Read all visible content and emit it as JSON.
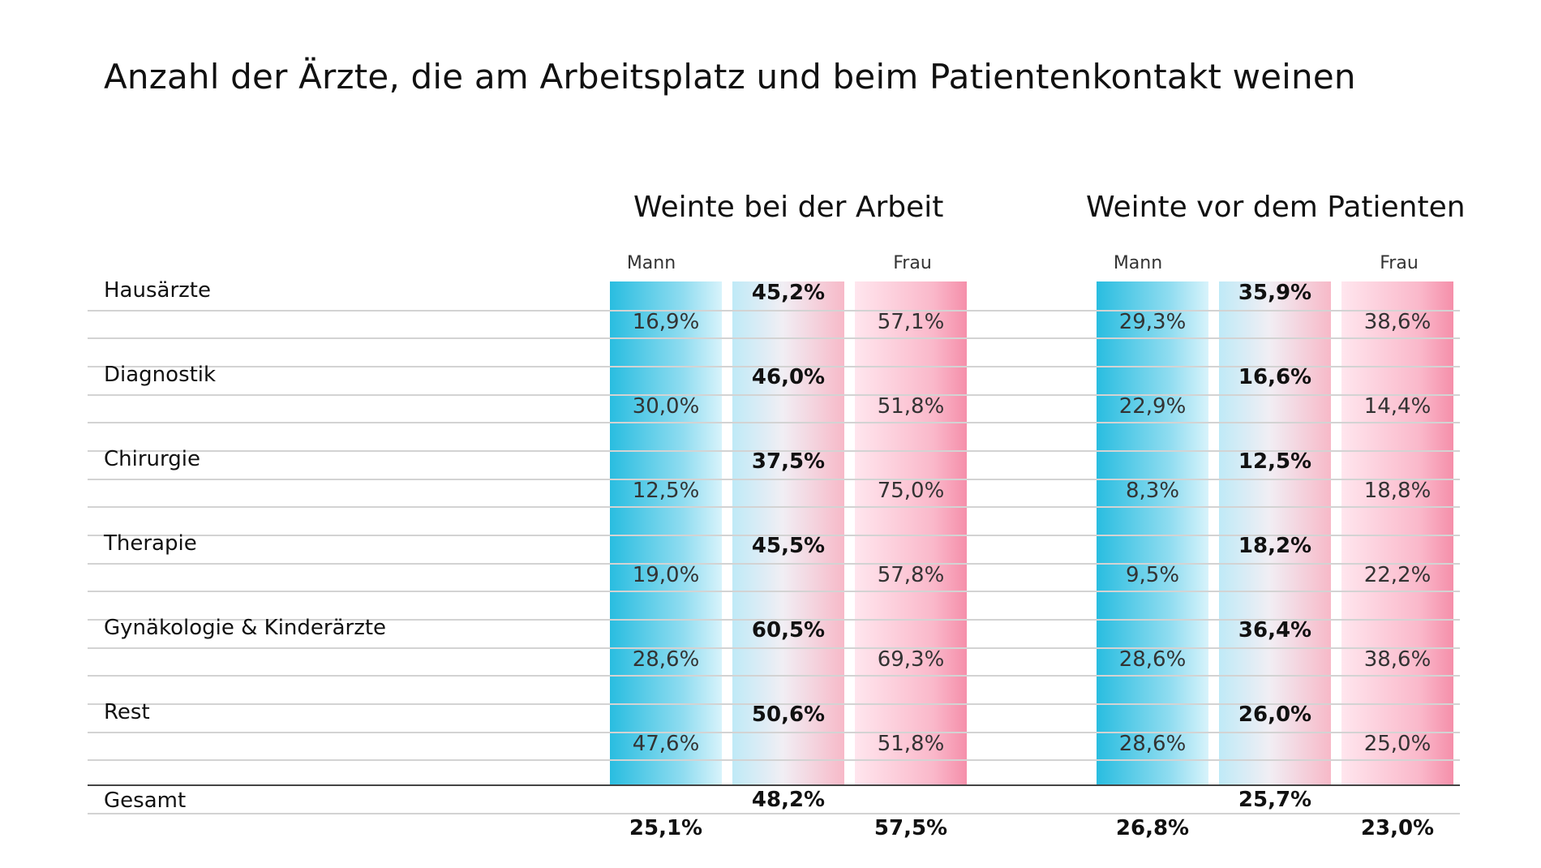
{
  "chart_data": {
    "type": "table",
    "title": "Anzahl der Ärzte, die am Arbeitsplatz und beim Patientenkontakt weinen",
    "groups": [
      {
        "title": "Weinte bei der Arbeit",
        "mann_label": "Mann",
        "frau_label": "Frau"
      },
      {
        "title": "Weinte vor dem Patienten",
        "mann_label": "Mann",
        "frau_label": "Frau"
      }
    ],
    "rows": [
      {
        "category": "Hausärzte",
        "arbeit": {
          "gesamt": "45,2%",
          "mann": "16,9%",
          "frau": "57,1%"
        },
        "patient": {
          "gesamt": "35,9%",
          "mann": "29,3%",
          "frau": "38,6%"
        }
      },
      {
        "category": "Diagnostik",
        "arbeit": {
          "gesamt": "46,0%",
          "mann": "30,0%",
          "frau": "51,8%"
        },
        "patient": {
          "gesamt": "16,6%",
          "mann": "22,9%",
          "frau": "14,4%"
        }
      },
      {
        "category": "Chirurgie",
        "arbeit": {
          "gesamt": "37,5%",
          "mann": "12,5%",
          "frau": "75,0%"
        },
        "patient": {
          "gesamt": "12,5%",
          "mann": "8,3%",
          "frau": "18,8%"
        }
      },
      {
        "category": "Therapie",
        "arbeit": {
          "gesamt": "45,5%",
          "mann": "19,0%",
          "frau": "57,8%"
        },
        "patient": {
          "gesamt": "18,2%",
          "mann": "9,5%",
          "frau": "22,2%"
        }
      },
      {
        "category": "Gynäkologie & Kinderärzte",
        "arbeit": {
          "gesamt": "60,5%",
          "mann": "28,6%",
          "frau": "69,3%"
        },
        "patient": {
          "gesamt": "36,4%",
          "mann": "28,6%",
          "frau": "38,6%"
        }
      },
      {
        "category": "Rest",
        "arbeit": {
          "gesamt": "50,6%",
          "mann": "47,6%",
          "frau": "51,8%"
        },
        "patient": {
          "gesamt": "26,0%",
          "mann": "28,6%",
          "frau": "25,0%"
        }
      }
    ],
    "total": {
      "category": "Gesamt",
      "arbeit": {
        "gesamt": "48,2%",
        "mann": "25,1%",
        "frau": "57,5%"
      },
      "patient": {
        "gesamt": "25,7%",
        "mann": "26,8%",
        "frau": "23,0%"
      }
    }
  }
}
